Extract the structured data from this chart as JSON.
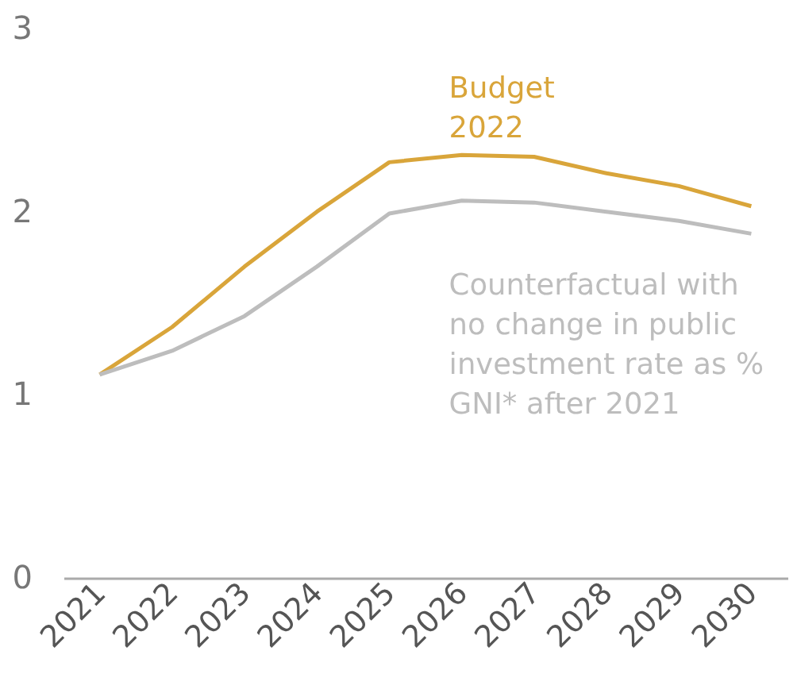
{
  "chart_data": {
    "type": "line",
    "categories": [
      "2021",
      "2022",
      "2023",
      "2024",
      "2025",
      "2026",
      "2027",
      "2028",
      "2029",
      "2030"
    ],
    "series": [
      {
        "name": "Budget 2022",
        "color": "#d9a53a",
        "values": [
          1.11,
          1.37,
          1.7,
          2.0,
          2.27,
          2.31,
          2.3,
          2.21,
          2.14,
          2.03
        ]
      },
      {
        "name": "Counterfactual with no change in public investment rate as % GNI* after 2021",
        "color": "#bdbdbd",
        "values": [
          1.11,
          1.24,
          1.43,
          1.7,
          1.99,
          2.06,
          2.05,
          2.0,
          1.95,
          1.88
        ]
      }
    ],
    "ylim": [
      0,
      3
    ],
    "yticks": [
      0,
      1,
      2,
      3
    ],
    "grid": false
  }
}
